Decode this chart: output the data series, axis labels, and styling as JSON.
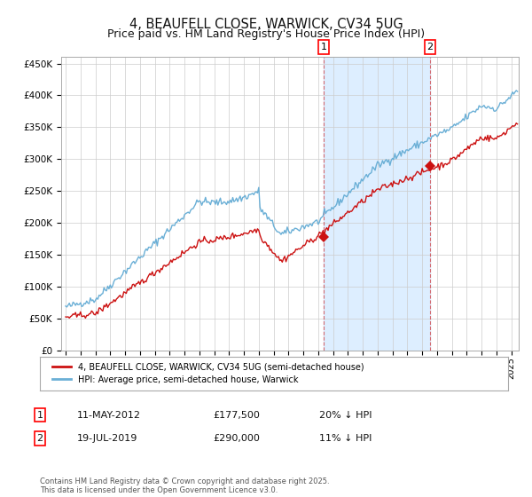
{
  "title": "4, BEAUFELL CLOSE, WARWICK, CV34 5UG",
  "subtitle": "Price paid vs. HM Land Registry's House Price Index (HPI)",
  "title_fontsize": 10.5,
  "subtitle_fontsize": 9,
  "bg_color": "#ffffff",
  "plot_bg_color": "#ffffff",
  "grid_color": "#cccccc",
  "shaded_region_color": "#ddeeff",
  "hpi_line_color": "#6aafd6",
  "price_line_color": "#cc1111",
  "purchase1_date": 2012.36,
  "purchase1_price": 177500,
  "purchase2_date": 2019.54,
  "purchase2_price": 290000,
  "legend_label_price": "4, BEAUFELL CLOSE, WARWICK, CV34 5UG (semi-detached house)",
  "legend_label_hpi": "HPI: Average price, semi-detached house, Warwick",
  "annotation1_date": "11-MAY-2012",
  "annotation1_price": "£177,500",
  "annotation1_hpi": "20% ↓ HPI",
  "annotation2_date": "19-JUL-2019",
  "annotation2_price": "£290,000",
  "annotation2_hpi": "11% ↓ HPI",
  "footer": "Contains HM Land Registry data © Crown copyright and database right 2025.\nThis data is licensed under the Open Government Licence v3.0.",
  "ylim": [
    0,
    460000
  ],
  "yticks": [
    0,
    50000,
    100000,
    150000,
    200000,
    250000,
    300000,
    350000,
    400000,
    450000
  ],
  "xlim_start": 1994.7,
  "xlim_end": 2025.5
}
